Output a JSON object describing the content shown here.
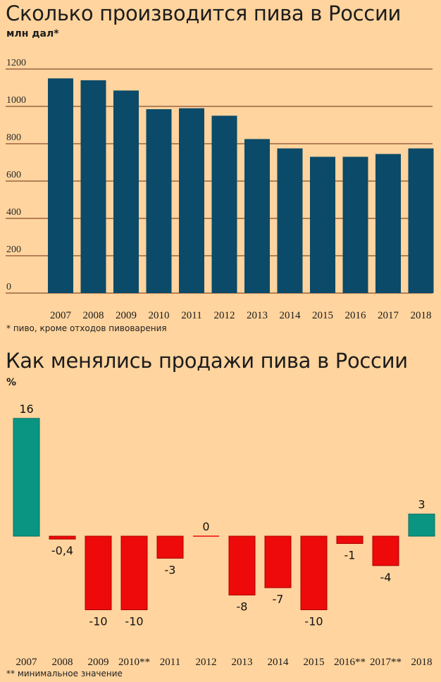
{
  "charts": {
    "production": {
      "title": "Сколько производится пива в России",
      "unit": "млн дал*",
      "footnote": "* пиво, кроме отходов пивоварения"
    },
    "sales": {
      "title": "Как менялись продажи пива в России",
      "unit": "%",
      "footnote": "** минимальное значение"
    }
  },
  "colors": {
    "background": "#ffd49e",
    "production_bar": "#0b4a68",
    "positive_bar": "#0a9583",
    "negative_bar": "#ee0a0a",
    "gridline": "#6b2a10"
  },
  "chart_data": [
    {
      "type": "bar",
      "title": "Сколько производится пива в России",
      "ylabel": "млн дал*",
      "categories": [
        "2007",
        "2008",
        "2009",
        "2010",
        "2011",
        "2012",
        "2013",
        "2014",
        "2015",
        "2016",
        "2017",
        "2018"
      ],
      "values": [
        1150,
        1140,
        1085,
        985,
        990,
        950,
        825,
        775,
        730,
        730,
        745,
        775
      ],
      "yticks": [
        0,
        200,
        400,
        600,
        800,
        1000,
        1200
      ],
      "ylim": [
        0,
        1200
      ],
      "grid": true
    },
    {
      "type": "bar",
      "title": "Как менялись продажи пива в России",
      "ylabel": "%",
      "categories": [
        "2007",
        "2008",
        "2009",
        "2010**",
        "2011",
        "2012",
        "2013",
        "2014",
        "2015",
        "2016**",
        "2017**",
        "2018"
      ],
      "values": [
        16,
        -0.4,
        -10,
        -10,
        -3,
        0,
        -8,
        -7,
        -10,
        -1,
        -4,
        3
      ],
      "value_labels": [
        "16",
        "-0,4",
        "-10",
        "-10",
        "-3",
        "0",
        "-8",
        "-7",
        "-10",
        "-1",
        "-4",
        "3"
      ],
      "grid": false
    }
  ]
}
